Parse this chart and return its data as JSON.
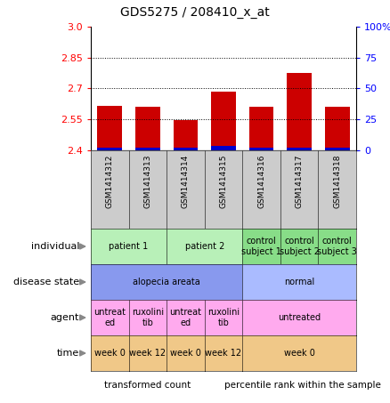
{
  "title": "GDS5275 / 208410_x_at",
  "samples": [
    "GSM1414312",
    "GSM1414313",
    "GSM1414314",
    "GSM1414315",
    "GSM1414316",
    "GSM1414317",
    "GSM1414318"
  ],
  "red_values": [
    2.615,
    2.61,
    2.545,
    2.685,
    2.61,
    2.775,
    2.61
  ],
  "blue_values": [
    2.415,
    2.415,
    2.415,
    2.42,
    2.415,
    2.415,
    2.415
  ],
  "ylim_left": [
    2.4,
    3.0
  ],
  "yticks_left": [
    2.4,
    2.55,
    2.7,
    2.85,
    3.0
  ],
  "yticks_right": [
    0,
    25,
    50,
    75,
    100
  ],
  "ytick_labels_right": [
    "0",
    "25",
    "50",
    "75",
    "100%"
  ],
  "bar_base": 2.4,
  "bar_width": 0.65,
  "hlines": [
    2.55,
    2.7,
    2.85
  ],
  "annotation_rows": [
    {
      "label": "individual",
      "cells": [
        {
          "text": "patient 1",
          "span": [
            0,
            1
          ],
          "color": "#b8f0b8"
        },
        {
          "text": "patient 2",
          "span": [
            2,
            3
          ],
          "color": "#b8f0b8"
        },
        {
          "text": "control\nsubject 1",
          "span": [
            4,
            4
          ],
          "color": "#88dd88"
        },
        {
          "text": "control\nsubject 2",
          "span": [
            5,
            5
          ],
          "color": "#88dd88"
        },
        {
          "text": "control\nsubject 3",
          "span": [
            6,
            6
          ],
          "color": "#88dd88"
        }
      ]
    },
    {
      "label": "disease state",
      "cells": [
        {
          "text": "alopecia areata",
          "span": [
            0,
            3
          ],
          "color": "#8899ee"
        },
        {
          "text": "normal",
          "span": [
            4,
            6
          ],
          "color": "#aabbff"
        }
      ]
    },
    {
      "label": "agent",
      "cells": [
        {
          "text": "untreat\ned",
          "span": [
            0,
            0
          ],
          "color": "#ffaaee"
        },
        {
          "text": "ruxolini\ntib",
          "span": [
            1,
            1
          ],
          "color": "#ffaaee"
        },
        {
          "text": "untreat\ned",
          "span": [
            2,
            2
          ],
          "color": "#ffaaee"
        },
        {
          "text": "ruxolini\ntib",
          "span": [
            3,
            3
          ],
          "color": "#ffaaee"
        },
        {
          "text": "untreated",
          "span": [
            4,
            6
          ],
          "color": "#ffaaee"
        }
      ]
    },
    {
      "label": "time",
      "cells": [
        {
          "text": "week 0",
          "span": [
            0,
            0
          ],
          "color": "#f0c888"
        },
        {
          "text": "week 12",
          "span": [
            1,
            1
          ],
          "color": "#f0c888"
        },
        {
          "text": "week 0",
          "span": [
            2,
            2
          ],
          "color": "#f0c888"
        },
        {
          "text": "week 12",
          "span": [
            3,
            3
          ],
          "color": "#f0c888"
        },
        {
          "text": "week 0",
          "span": [
            4,
            6
          ],
          "color": "#f0c888"
        }
      ]
    }
  ],
  "legend": [
    {
      "color": "#cc0000",
      "label": "transformed count"
    },
    {
      "color": "#0000cc",
      "label": "percentile rank within the sample"
    }
  ],
  "sample_bg_color": "#cccccc",
  "fig_width": 4.38,
  "fig_height": 4.53,
  "dpi": 100
}
